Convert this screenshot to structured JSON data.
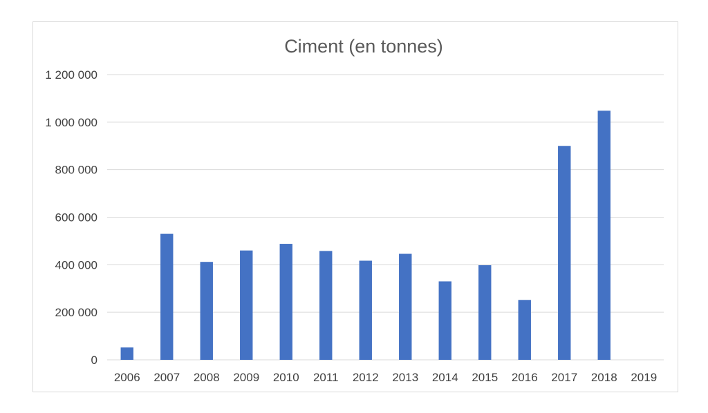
{
  "chart_data": {
    "type": "bar",
    "title": "Ciment (en tonnes)",
    "xlabel": "",
    "ylabel": "",
    "categories": [
      "2006",
      "2007",
      "2008",
      "2009",
      "2010",
      "2011",
      "2012",
      "2013",
      "2014",
      "2015",
      "2016",
      "2017",
      "2018",
      "2019"
    ],
    "values": [
      52000,
      530000,
      412000,
      460000,
      488000,
      458000,
      417000,
      446000,
      330000,
      398000,
      252000,
      900000,
      1048000,
      0
    ],
    "ylim": [
      0,
      1200000
    ],
    "yticks": [
      0,
      200000,
      400000,
      600000,
      800000,
      1000000,
      1200000
    ],
    "ytick_labels": [
      "0",
      "200 000",
      "400 000",
      "600 000",
      "800 000",
      "1 000 000",
      "1 200 000"
    ],
    "grid": true,
    "legend": "none",
    "bar_color": "#4472c4"
  }
}
